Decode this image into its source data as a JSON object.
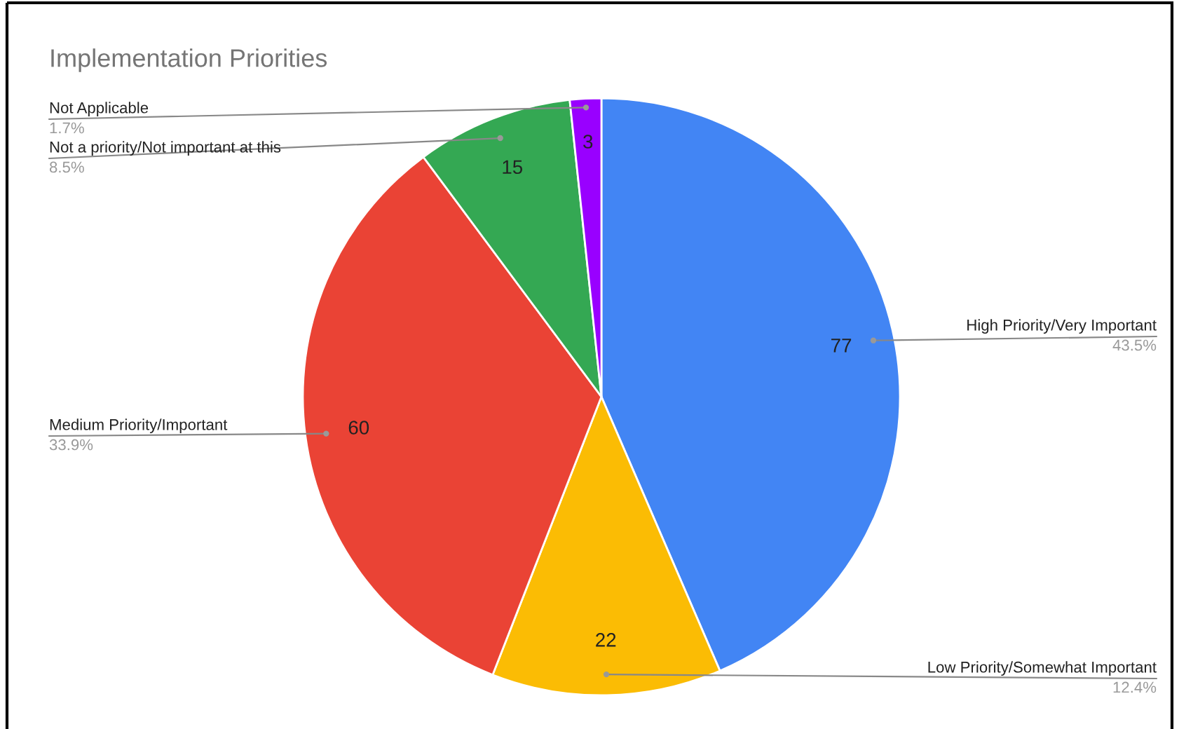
{
  "chart_data": {
    "type": "pie",
    "title": "Implementation Priorities",
    "categories": [
      "High Priority/Very Important",
      "Low Priority/Somewhat Important",
      "Medium Priority/Important",
      "Not a priority/Not important at this",
      "Not Applicable"
    ],
    "values": [
      77,
      22,
      60,
      15,
      3
    ],
    "colors": [
      "#4285f4",
      "#fbbc04",
      "#ea4335",
      "#34a853",
      "#9900ff"
    ],
    "data_labels": true,
    "annotations": [
      "43.5%",
      "12.4%",
      "33.9%",
      "8.5%",
      "1.7%"
    ]
  }
}
